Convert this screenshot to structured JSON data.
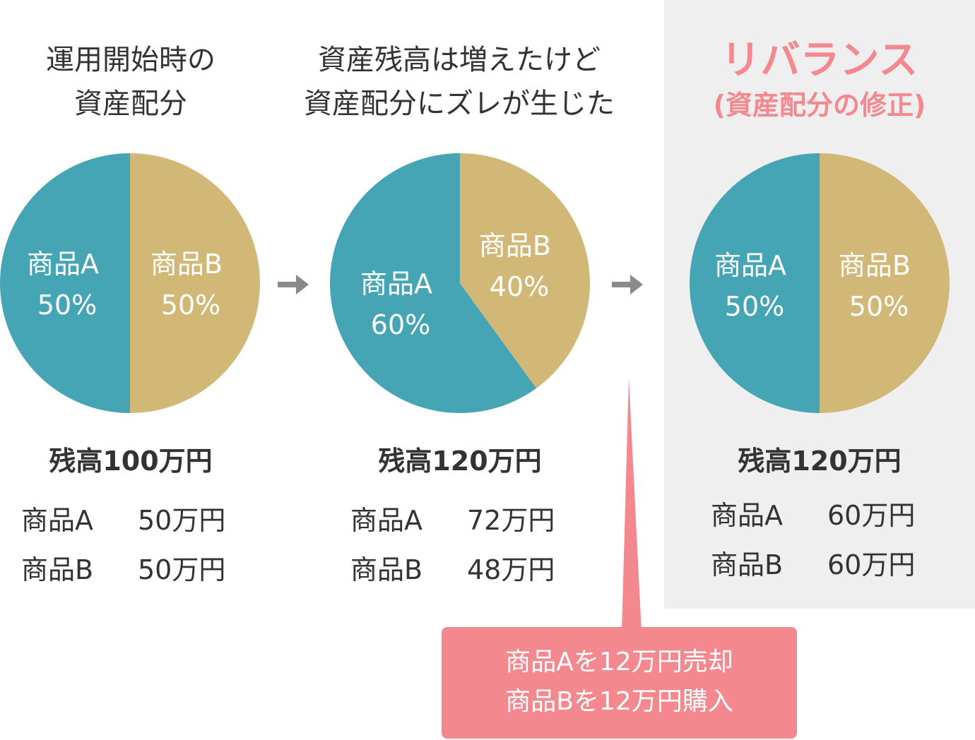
{
  "colors": {
    "product_a": "#46a5b4",
    "product_b": "#d2b877",
    "accent": "#f4888f",
    "highlight_bg": "#efefef",
    "arrow": "#8a8a8a"
  },
  "stages": [
    {
      "title": [
        "運用開始時の",
        "資産配分"
      ],
      "slices": [
        {
          "label": "商品A",
          "percent_text": "50%",
          "value": 50
        },
        {
          "label": "商品B",
          "percent_text": "50%",
          "value": 50
        }
      ],
      "total": "残高100万円",
      "breakdown": [
        {
          "name": "商品A",
          "amount": "50万円"
        },
        {
          "name": "商品B",
          "amount": "50万円"
        }
      ]
    },
    {
      "title": [
        "資産残高は増えたけど",
        "資産配分にズレが生じた"
      ],
      "slices": [
        {
          "label": "商品A",
          "percent_text": "60%",
          "value": 60
        },
        {
          "label": "商品B",
          "percent_text": "40%",
          "value": 40
        }
      ],
      "total": "残高120万円",
      "breakdown": [
        {
          "name": "商品A",
          "amount": "72万円"
        },
        {
          "name": "商品B",
          "amount": "48万円"
        }
      ]
    },
    {
      "title": [
        "リバランス",
        "(資産配分の修正)"
      ],
      "slices": [
        {
          "label": "商品A",
          "percent_text": "50%",
          "value": 50
        },
        {
          "label": "商品B",
          "percent_text": "50%",
          "value": 50
        }
      ],
      "total": "残高120万円",
      "breakdown": [
        {
          "name": "商品A",
          "amount": "60万円"
        },
        {
          "name": "商品B",
          "amount": "60万円"
        }
      ]
    }
  ],
  "arrow_icon": "right-arrow-icon",
  "callout": [
    "商品Aを12万円売却",
    "商品Bを12万円購入"
  ]
}
